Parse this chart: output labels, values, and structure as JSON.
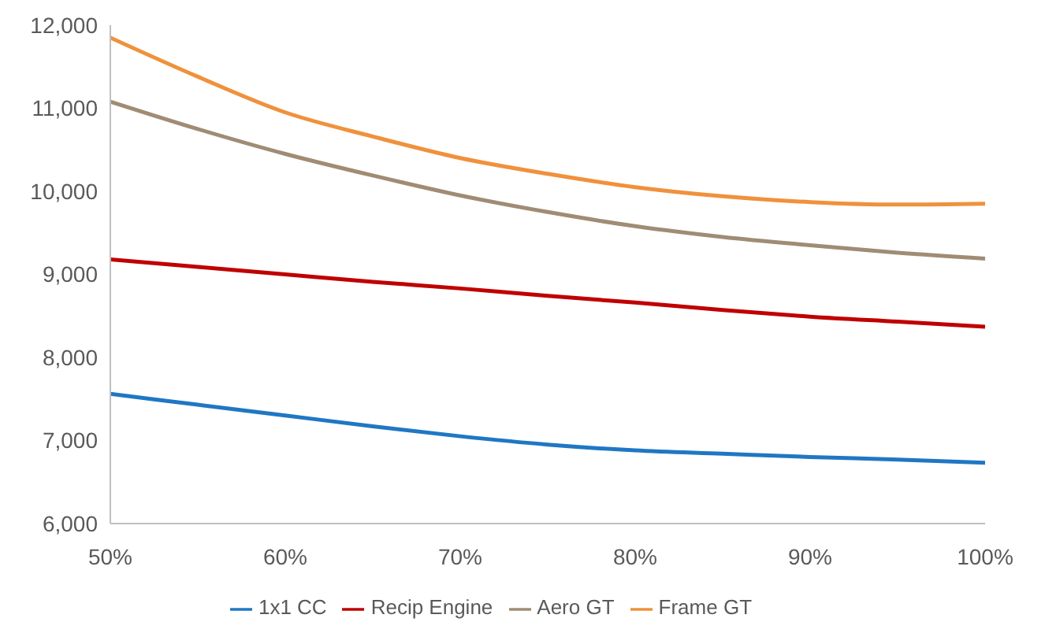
{
  "chart_data": {
    "type": "line",
    "x": [
      50,
      55,
      60,
      65,
      70,
      75,
      80,
      85,
      90,
      95,
      100
    ],
    "series": [
      {
        "name": "1x1 CC",
        "color": "#1f77c4",
        "values": [
          7560,
          7430,
          7300,
          7170,
          7050,
          6950,
          6880,
          6840,
          6800,
          6770,
          6730
        ]
      },
      {
        "name": "Recip Engine",
        "color": "#c00000",
        "values": [
          9180,
          9090,
          9000,
          8910,
          8830,
          8740,
          8660,
          8570,
          8490,
          8430,
          8370
        ]
      },
      {
        "name": "Aero GT",
        "color": "#a08c74",
        "values": [
          11080,
          10750,
          10450,
          10190,
          9950,
          9750,
          9580,
          9450,
          9350,
          9260,
          9190
        ]
      },
      {
        "name": "Frame GT",
        "color": "#f0913c",
        "values": [
          11850,
          11380,
          10950,
          10660,
          10400,
          10210,
          10050,
          9940,
          9870,
          9840,
          9850
        ]
      }
    ],
    "xlim": [
      50,
      100
    ],
    "xticks": [
      {
        "value": 50,
        "label": "50%"
      },
      {
        "value": 60,
        "label": "60%"
      },
      {
        "value": 70,
        "label": "70%"
      },
      {
        "value": 80,
        "label": "80%"
      },
      {
        "value": 90,
        "label": "90%"
      },
      {
        "value": 100,
        "label": "100%"
      }
    ],
    "ylim": [
      6000,
      12000
    ],
    "yticks": [
      {
        "value": 6000,
        "label": "6,000"
      },
      {
        "value": 7000,
        "label": "7,000"
      },
      {
        "value": 8000,
        "label": "8,000"
      },
      {
        "value": 9000,
        "label": "9,000"
      },
      {
        "value": 10000,
        "label": "10,000"
      },
      {
        "value": 11000,
        "label": "11,000"
      },
      {
        "value": 12000,
        "label": "12,000"
      }
    ],
    "grid": false,
    "legend": "bottom",
    "marker": "none",
    "line_style": "solid"
  }
}
